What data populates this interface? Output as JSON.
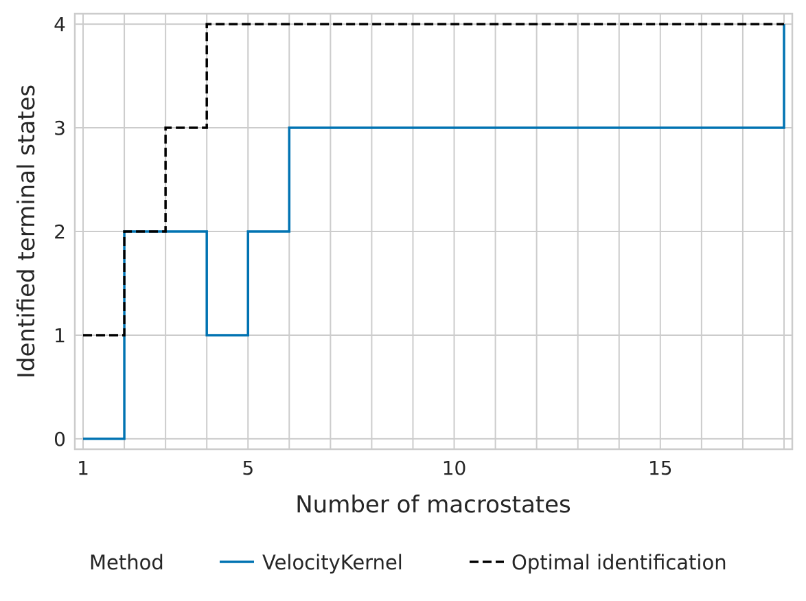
{
  "chart_data": {
    "type": "line",
    "step": "post",
    "xlabel": "Number of macrostates",
    "ylabel": "Identified terminal states",
    "xlim": [
      0.8,
      18.2
    ],
    "ylim": [
      -0.1,
      4.1
    ],
    "xticks": [
      1,
      5,
      10,
      15
    ],
    "yticks": [
      0,
      1,
      2,
      3,
      4
    ],
    "grid": true,
    "legend": {
      "title": "Method",
      "placement": "bottom",
      "entries": [
        "VelocityKernel",
        "Optimal identification"
      ]
    },
    "x": [
      1,
      2,
      3,
      4,
      5,
      6,
      7,
      8,
      9,
      10,
      11,
      12,
      13,
      14,
      15,
      16,
      17,
      18
    ],
    "series": [
      {
        "name": "VelocityKernel",
        "color": "#0173b2",
        "dash": "solid",
        "values": [
          0,
          2,
          2,
          1,
          2,
          3,
          3,
          3,
          3,
          3,
          3,
          3,
          3,
          3,
          3,
          3,
          3,
          4
        ]
      },
      {
        "name": "Optimal identification",
        "color": "#000000",
        "dash": "dashed",
        "values": [
          1,
          2,
          3,
          4,
          4,
          4,
          4,
          4,
          4,
          4,
          4,
          4,
          4,
          4,
          4,
          4,
          4,
          4
        ]
      }
    ]
  }
}
